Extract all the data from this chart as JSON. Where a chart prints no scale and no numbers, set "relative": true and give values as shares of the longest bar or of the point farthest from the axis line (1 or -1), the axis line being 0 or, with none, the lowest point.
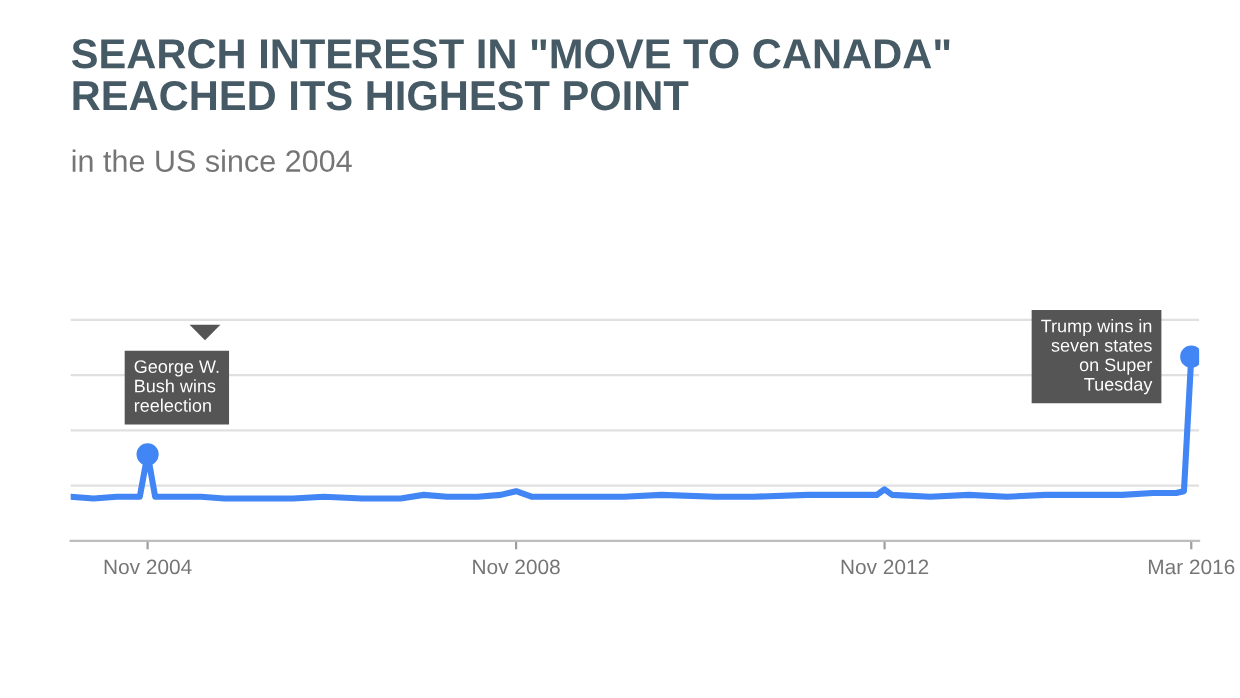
{
  "chart_data": {
    "type": "line",
    "title": "SEARCH INTEREST IN \"MOVE TO CANADA\"\nREACHED ITS HIGHEST POINT",
    "subtitle": "in the US since 2004",
    "relative": true,
    "grid": "y",
    "legend": false,
    "marker": "none",
    "line_style": "solid",
    "xlim": [
      "2004-01",
      "2016-04"
    ],
    "xticks": [
      {
        "value": "2004-11",
        "label": "Nov 2004"
      },
      {
        "value": "2008-11",
        "label": "Nov 2008"
      },
      {
        "value": "2012-11",
        "label": "Nov 2012"
      },
      {
        "value": "2016-03",
        "label": "Mar 2016"
      }
    ],
    "series": [
      {
        "color": "#4285f4",
        "x": [
          "2004-01",
          "2004-04",
          "2004-07",
          "2004-10",
          "2004-11",
          "2004-12",
          "2005-03",
          "2005-06",
          "2005-09",
          "2006-01",
          "2006-06",
          "2006-10",
          "2007-03",
          "2007-08",
          "2007-11",
          "2008-02",
          "2008-06",
          "2008-09",
          "2008-11",
          "2009-01",
          "2009-06",
          "2010-01",
          "2010-06",
          "2011-01",
          "2011-06",
          "2012-01",
          "2012-06",
          "2012-10",
          "2012-11",
          "2012-12",
          "2013-05",
          "2013-10",
          "2014-03",
          "2014-08",
          "2015-01",
          "2015-06",
          "2015-10",
          "2016-01",
          "2016-02",
          "2016-03"
        ],
        "values": [
          0.24,
          0.23,
          0.24,
          0.24,
          0.47,
          0.24,
          0.24,
          0.24,
          0.23,
          0.23,
          0.23,
          0.24,
          0.23,
          0.23,
          0.25,
          0.24,
          0.24,
          0.25,
          0.27,
          0.24,
          0.24,
          0.24,
          0.25,
          0.24,
          0.24,
          0.25,
          0.25,
          0.25,
          0.28,
          0.25,
          0.24,
          0.25,
          0.24,
          0.25,
          0.25,
          0.25,
          0.26,
          0.26,
          0.27,
          1
        ]
      }
    ],
    "annotations": [
      {
        "text": "George W.\nBush wins\nreelection",
        "x": "2004-11",
        "y": 0.47
      },
      {
        "text": "Trump wins in\nseven states\non Super\nTuesday",
        "x": "2016-03",
        "y": 1
      }
    ]
  }
}
